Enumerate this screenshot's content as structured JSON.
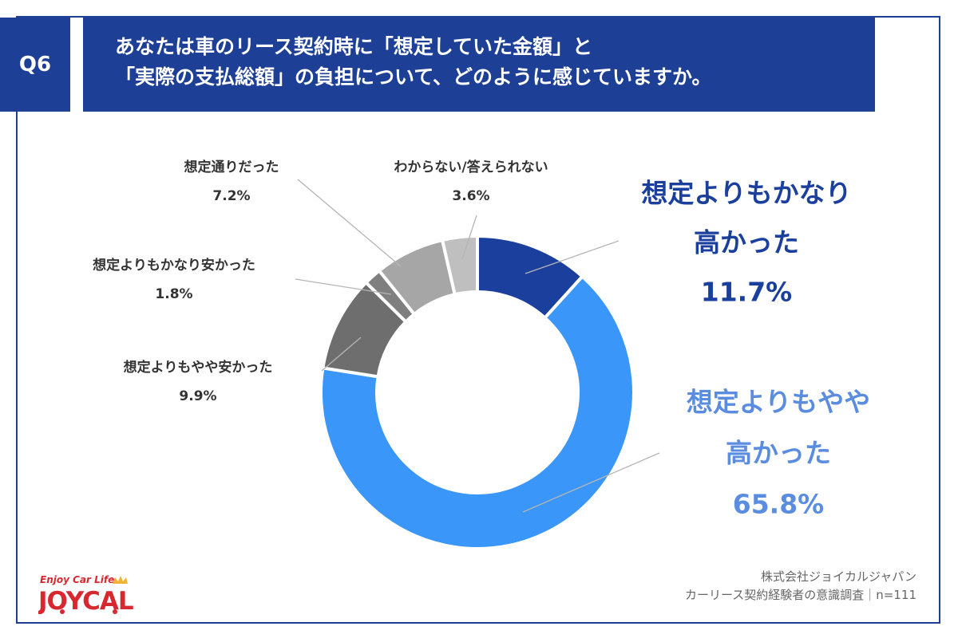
{
  "header": {
    "badge": "Q6",
    "title_line1": "あなたは車のリース契約時に「想定していた金額」と",
    "title_line2": "「実際の支払総額」の負担について、どのように感じていますか。"
  },
  "chart_data": {
    "type": "pie",
    "donut": true,
    "slices": [
      {
        "label_lines": [
          "想定よりもかなり",
          "高かった"
        ],
        "value_text": "11.7%",
        "value": 11.7,
        "color": "#1a3f9c",
        "label_color": "#1a3f9c"
      },
      {
        "label_lines": [
          "想定よりもやや",
          "高かった"
        ],
        "value_text": "65.8%",
        "value": 65.8,
        "color": "#3a96f8",
        "label_color": "#5a8ce0"
      },
      {
        "label_lines": [
          "想定よりもやや安かった"
        ],
        "value_text": "9.9%",
        "value": 9.9,
        "color": "#6e6e6e",
        "label_color": "#333333"
      },
      {
        "label_lines": [
          "想定よりもかなり安かった"
        ],
        "value_text": "1.8%",
        "value": 1.8,
        "color": "#7f7f7f",
        "label_color": "#333333"
      },
      {
        "label_lines": [
          "想定通りだった"
        ],
        "value_text": "7.2%",
        "value": 7.2,
        "color": "#a6a6a6",
        "label_color": "#333333"
      },
      {
        "label_lines": [
          "わからない/答えられない"
        ],
        "value_text": "3.6%",
        "value": 3.6,
        "color": "#bfbfbf",
        "label_color": "#333333"
      }
    ]
  },
  "footer": {
    "company": "株式会社ジョイカルジャパン",
    "survey": "カーリース契約経験者の意識調査｜n=111"
  },
  "logo": {
    "tagline": "Enjoy Car Life",
    "brand": "JOYCAL"
  },
  "colors": {
    "brand_navy": "#1d3f95",
    "brand_red": "#d7282f",
    "logo_yellow": "#f2b233"
  }
}
